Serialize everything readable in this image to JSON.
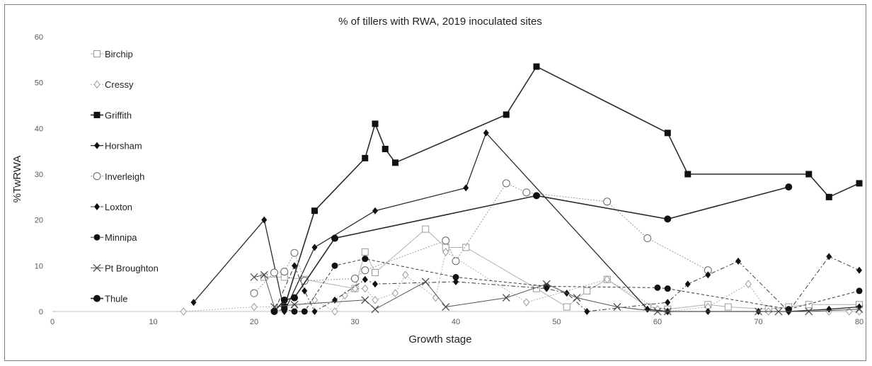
{
  "chart_data": {
    "type": "line",
    "title": "% of tillers with RWA, 2019 inoculated sites",
    "xlabel": "Growth stage",
    "ylabel": "%TwRWA",
    "xlim": [
      0,
      80
    ],
    "ylim": [
      0,
      60
    ],
    "xticks": [
      0,
      10,
      20,
      30,
      40,
      50,
      60,
      70,
      80
    ],
    "yticks": [
      0,
      10,
      20,
      30,
      40,
      50,
      60
    ],
    "grid": "none",
    "legend_position": "top-left inside plot",
    "series": [
      {
        "name": "Birchip",
        "marker": "open-square",
        "stroke": "#b0b0b0",
        "dash": "",
        "width": 1,
        "points": [
          [
            21,
            7.5
          ],
          [
            23,
            7.5
          ],
          [
            25,
            7
          ],
          [
            30,
            5
          ],
          [
            31,
            13
          ],
          [
            32,
            8.5
          ],
          [
            37,
            18
          ],
          [
            39,
            14
          ],
          [
            41,
            14
          ],
          [
            48,
            5
          ],
          [
            51,
            1
          ],
          [
            53,
            4.5
          ],
          [
            55,
            7
          ],
          [
            59,
            1
          ],
          [
            61,
            0.5
          ],
          [
            65,
            1.5
          ],
          [
            67,
            1
          ],
          [
            71,
            0.5
          ],
          [
            73,
            1
          ],
          [
            75,
            1.5
          ],
          [
            80,
            1.5
          ]
        ]
      },
      {
        "name": "Cressy",
        "marker": "open-diamond",
        "stroke": "#b0b0b0",
        "dash": "2 2",
        "width": 1,
        "points": [
          [
            13,
            0
          ],
          [
            20,
            1
          ],
          [
            24,
            1
          ],
          [
            26,
            2.5
          ],
          [
            28,
            0
          ],
          [
            29,
            3.5
          ],
          [
            30,
            5
          ],
          [
            31,
            5
          ],
          [
            32,
            2.5
          ],
          [
            34,
            4
          ],
          [
            35,
            8
          ],
          [
            38,
            3
          ],
          [
            39,
            13
          ],
          [
            47,
            2
          ],
          [
            55,
            7
          ],
          [
            60,
            0.5
          ],
          [
            61,
            0
          ],
          [
            65,
            1
          ],
          [
            69,
            6
          ],
          [
            71,
            0
          ],
          [
            73,
            0
          ],
          [
            77,
            0
          ],
          [
            79,
            0
          ],
          [
            80,
            0
          ]
        ]
      },
      {
        "name": "Griffith",
        "marker": "filled-square",
        "stroke": "#2b2b2b",
        "dash": "",
        "width": 1.6,
        "points": [
          [
            23,
            1
          ],
          [
            26,
            22
          ],
          [
            31,
            33.5
          ],
          [
            32,
            41
          ],
          [
            33,
            35.5
          ],
          [
            34,
            32.5
          ],
          [
            45,
            43
          ],
          [
            48,
            53.5
          ],
          [
            61,
            39
          ],
          [
            63,
            30
          ],
          [
            75,
            30
          ],
          [
            77,
            25
          ],
          [
            80,
            28
          ]
        ]
      },
      {
        "name": "Horsham",
        "marker": "filled-diamond",
        "stroke": "#2b2b2b",
        "dash": "",
        "width": 1.3,
        "points": [
          [
            14,
            2
          ],
          [
            21,
            20
          ],
          [
            23,
            0
          ],
          [
            26,
            14
          ],
          [
            32,
            22
          ],
          [
            41,
            27
          ],
          [
            43,
            39
          ],
          [
            59,
            0.5
          ],
          [
            61,
            0
          ],
          [
            65,
            0
          ],
          [
            70,
            0
          ],
          [
            73,
            0
          ],
          [
            77,
            0.5
          ],
          [
            80,
            1
          ]
        ]
      },
      {
        "name": "Inverleigh",
        "marker": "open-circle",
        "stroke": "#9a9a9a",
        "dash": "2 2",
        "width": 1,
        "points": [
          [
            20,
            4
          ],
          [
            22,
            8.5
          ],
          [
            23,
            8.7
          ],
          [
            24,
            12.8
          ],
          [
            25,
            6.7
          ],
          [
            30,
            7.2
          ],
          [
            31,
            9
          ],
          [
            39,
            15.5
          ],
          [
            40,
            11
          ],
          [
            45,
            28
          ],
          [
            47,
            26
          ],
          [
            55,
            24
          ],
          [
            59,
            16
          ],
          [
            65,
            9
          ]
        ]
      },
      {
        "name": "Loxton",
        "marker": "filled-diamond",
        "stroke": "#3a3a3a",
        "dash": "6 3 2 3",
        "width": 1,
        "points": [
          [
            22,
            0
          ],
          [
            24,
            10
          ],
          [
            25,
            4.5
          ],
          [
            26,
            0
          ],
          [
            28,
            2.5
          ],
          [
            31,
            7
          ],
          [
            32,
            6
          ],
          [
            40,
            6.5
          ],
          [
            49,
            5
          ],
          [
            51,
            4
          ],
          [
            53,
            0
          ],
          [
            61,
            2
          ],
          [
            63,
            6
          ],
          [
            65,
            8
          ],
          [
            68,
            11
          ],
          [
            73,
            0
          ],
          [
            77,
            12
          ],
          [
            80,
            9
          ]
        ]
      },
      {
        "name": "Minnipa",
        "marker": "filled-circle",
        "stroke": "#3a3a3a",
        "dash": "4 3",
        "width": 1,
        "points": [
          [
            22,
            0
          ],
          [
            23,
            0.5
          ],
          [
            24,
            0
          ],
          [
            25,
            0
          ],
          [
            28,
            10
          ],
          [
            31,
            11.5
          ],
          [
            40,
            7.5
          ],
          [
            49,
            5.5
          ],
          [
            60,
            5.2
          ],
          [
            61,
            5
          ],
          [
            73,
            0.5
          ],
          [
            80,
            4.5
          ]
        ]
      },
      {
        "name": "Pt Broughton",
        "marker": "x",
        "stroke": "#555555",
        "dash": "",
        "width": 1,
        "points": [
          [
            20,
            7.5
          ],
          [
            21,
            8
          ],
          [
            22,
            1
          ],
          [
            24,
            1.5
          ],
          [
            31,
            2.5
          ],
          [
            32,
            0.5
          ],
          [
            37,
            6.5
          ],
          [
            39,
            1
          ],
          [
            45,
            3
          ],
          [
            49,
            6
          ],
          [
            52,
            3
          ],
          [
            56,
            1
          ],
          [
            60,
            0
          ],
          [
            61,
            0
          ],
          [
            70,
            0
          ],
          [
            72,
            0
          ],
          [
            75,
            0
          ],
          [
            80,
            0.5
          ]
        ]
      },
      {
        "name": "Thule",
        "marker": "big-filled-circle",
        "stroke": "#2b2b2b",
        "dash": "",
        "width": 1.6,
        "points": [
          [
            22,
            0
          ],
          [
            23,
            2.5
          ],
          [
            24,
            3
          ],
          [
            28,
            16
          ],
          [
            48,
            25.3
          ],
          [
            61,
            20.2
          ],
          [
            73,
            27.2
          ]
        ]
      }
    ]
  }
}
